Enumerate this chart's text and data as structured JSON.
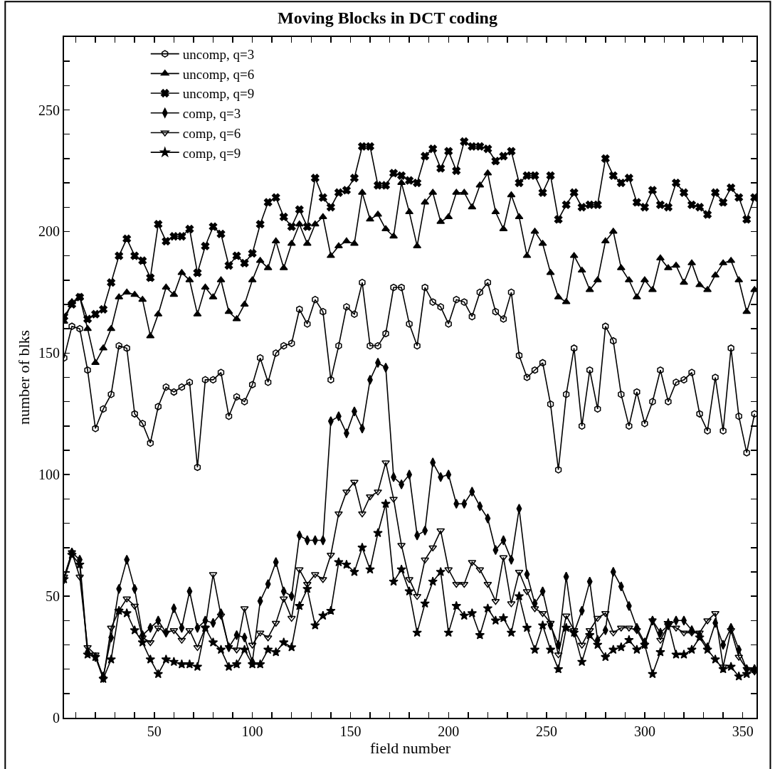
{
  "chart_data": {
    "type": "line",
    "title": "Moving Blocks in DCT coding",
    "xlabel": "field number",
    "ylabel": "number of blks",
    "x": [
      4,
      8,
      12,
      16,
      20,
      24,
      28,
      32,
      36,
      40,
      44,
      48,
      52,
      56,
      60,
      64,
      68,
      72,
      76,
      80,
      84,
      88,
      92,
      96,
      100,
      104,
      108,
      112,
      116,
      120,
      124,
      128,
      132,
      136,
      140,
      144,
      148,
      152,
      156,
      160,
      164,
      168,
      172,
      176,
      180,
      184,
      188,
      192,
      196,
      200,
      204,
      208,
      212,
      216,
      220,
      224,
      228,
      232,
      236,
      240,
      244,
      248,
      252,
      256,
      260,
      264,
      268,
      272,
      276,
      280,
      284,
      288,
      292,
      296,
      300,
      304,
      308,
      312,
      316,
      320,
      324,
      328,
      332,
      336,
      340,
      344,
      348,
      352,
      356
    ],
    "xlim": [
      4,
      357
    ],
    "ylim": [
      0,
      280
    ],
    "xticks": [
      {
        "value": 10,
        "label": null
      },
      {
        "value": 20,
        "label": null
      },
      {
        "value": 30,
        "label": null
      },
      {
        "value": 40,
        "label": null
      },
      50,
      {
        "value": 60,
        "label": null
      },
      {
        "value": 70,
        "label": null
      },
      {
        "value": 80,
        "label": null
      },
      {
        "value": 90,
        "label": null
      },
      100,
      {
        "value": 110,
        "label": null
      },
      {
        "value": 120,
        "label": null
      },
      {
        "value": 130,
        "label": null
      },
      {
        "value": 140,
        "label": null
      },
      150,
      {
        "value": 160,
        "label": null
      },
      {
        "value": 170,
        "label": null
      },
      {
        "value": 180,
        "label": null
      },
      {
        "value": 190,
        "label": null
      },
      200,
      {
        "value": 210,
        "label": null
      },
      {
        "value": 220,
        "label": null
      },
      {
        "value": 230,
        "label": null
      },
      {
        "value": 240,
        "label": null
      },
      250,
      {
        "value": 260,
        "label": null
      },
      {
        "value": 270,
        "label": null
      },
      {
        "value": 280,
        "label": null
      },
      {
        "value": 290,
        "label": null
      },
      300,
      {
        "value": 310,
        "label": null
      },
      {
        "value": 320,
        "label": null
      },
      {
        "value": 330,
        "label": null
      },
      {
        "value": 340,
        "label": null
      },
      350
    ],
    "yticks": [
      0,
      {
        "value": 10,
        "label": null
      },
      {
        "value": 20,
        "label": null
      },
      {
        "value": 30,
        "label": null
      },
      {
        "value": 40,
        "label": null
      },
      50,
      {
        "value": 60,
        "label": null
      },
      {
        "value": 70,
        "label": null
      },
      {
        "value": 80,
        "label": null
      },
      {
        "value": 90,
        "label": null
      },
      100,
      {
        "value": 110,
        "label": null
      },
      {
        "value": 120,
        "label": null
      },
      {
        "value": 130,
        "label": null
      },
      {
        "value": 140,
        "label": null
      },
      150,
      {
        "value": 160,
        "label": null
      },
      {
        "value": 170,
        "label": null
      },
      {
        "value": 180,
        "label": null
      },
      {
        "value": 190,
        "label": null
      },
      200,
      {
        "value": 210,
        "label": null
      },
      {
        "value": 220,
        "label": null
      },
      {
        "value": 230,
        "label": null
      },
      {
        "value": 240,
        "label": null
      },
      250,
      {
        "value": 260,
        "label": null
      },
      {
        "value": 270,
        "label": null
      },
      {
        "value": 280,
        "label": null
      }
    ],
    "grid": false,
    "legend": "top",
    "line_style": "solid",
    "series": [
      {
        "name": "uncomp, q=3",
        "color": "#000000",
        "marker": "circle",
        "values": [
          148,
          161,
          160,
          143,
          119,
          127,
          133,
          153,
          152,
          125,
          121,
          113,
          128,
          136,
          134,
          136,
          138,
          103,
          139,
          139,
          142,
          124,
          132,
          130,
          137,
          148,
          138,
          150,
          153,
          154,
          168,
          162,
          172,
          167,
          139,
          153,
          169,
          166,
          179,
          153,
          153,
          158,
          177,
          177,
          162,
          153,
          177,
          171,
          169,
          162,
          172,
          171,
          165,
          175,
          179,
          167,
          164,
          175,
          149,
          140,
          143,
          146,
          129,
          102,
          133,
          152,
          120,
          143,
          127,
          161,
          155,
          133,
          120,
          134,
          121,
          130,
          143,
          130,
          138,
          139,
          142,
          125,
          118,
          140,
          118,
          152,
          124,
          109,
          125
        ]
      },
      {
        "name": "uncomp, q=6",
        "color": "#000000",
        "marker": "triangle",
        "values": [
          163,
          171,
          173,
          160,
          146,
          152,
          160,
          173,
          175,
          174,
          172,
          157,
          166,
          177,
          174,
          183,
          180,
          166,
          177,
          173,
          180,
          167,
          164,
          170,
          180,
          188,
          185,
          196,
          185,
          195,
          203,
          195,
          203,
          206,
          190,
          194,
          196,
          195,
          216,
          205,
          207,
          201,
          198,
          220,
          208,
          194,
          212,
          216,
          204,
          206,
          216,
          216,
          210,
          219,
          224,
          208,
          201,
          215,
          206,
          190,
          200,
          195,
          183,
          173,
          171,
          190,
          184,
          176,
          180,
          196,
          200,
          185,
          180,
          173,
          180,
          176,
          189,
          185,
          186,
          179,
          187,
          178,
          176,
          182,
          187,
          188,
          180,
          167,
          176
        ]
      },
      {
        "name": "uncomp, q=9",
        "color": "#000000",
        "marker": "cross",
        "values": [
          165,
          170,
          173,
          164,
          166,
          168,
          179,
          190,
          197,
          190,
          188,
          181,
          203,
          196,
          198,
          198,
          201,
          183,
          194,
          202,
          199,
          186,
          190,
          187,
          191,
          203,
          212,
          214,
          206,
          202,
          209,
          202,
          222,
          214,
          210,
          216,
          217,
          222,
          235,
          235,
          219,
          219,
          224,
          223,
          221,
          220,
          231,
          234,
          226,
          233,
          225,
          237,
          235,
          235,
          234,
          229,
          231,
          233,
          220,
          223,
          223,
          216,
          223,
          205,
          211,
          216,
          210,
          211,
          211,
          230,
          223,
          220,
          222,
          212,
          210,
          217,
          211,
          210,
          220,
          216,
          211,
          210,
          207,
          216,
          212,
          218,
          214,
          205,
          214
        ]
      },
      {
        "name": "comp, q=3",
        "color": "#000000",
        "marker": "diamond",
        "values": [
          57,
          68,
          65,
          27,
          25,
          17,
          33,
          53,
          65,
          53,
          34,
          37,
          40,
          35,
          45,
          37,
          52,
          37,
          40,
          39,
          43,
          29,
          34,
          33,
          23,
          48,
          55,
          64,
          52,
          50,
          75,
          73,
          73,
          73,
          122,
          124,
          117,
          126,
          119,
          139,
          146,
          144,
          99,
          96,
          100,
          75,
          77,
          105,
          99,
          100,
          88,
          88,
          93,
          87,
          82,
          69,
          73,
          65,
          86,
          59,
          47,
          52,
          38,
          30,
          58,
          35,
          44,
          56,
          32,
          36,
          60,
          54,
          46,
          37,
          31,
          40,
          35,
          38,
          40,
          40,
          36,
          34,
          29,
          39,
          30,
          37,
          28,
          20,
          20
        ]
      },
      {
        "name": "comp, q=6",
        "color": "#000000",
        "marker": "triangle-down",
        "values": [
          58,
          68,
          58,
          29,
          26,
          16,
          37,
          44,
          49,
          46,
          33,
          31,
          37,
          35,
          36,
          32,
          36,
          29,
          37,
          59,
          42,
          29,
          28,
          45,
          30,
          35,
          33,
          39,
          49,
          41,
          61,
          55,
          59,
          57,
          67,
          84,
          93,
          97,
          84,
          91,
          93,
          105,
          90,
          71,
          57,
          50,
          65,
          70,
          77,
          61,
          55,
          55,
          64,
          61,
          55,
          48,
          66,
          47,
          60,
          52,
          45,
          43,
          39,
          26,
          42,
          36,
          30,
          36,
          41,
          43,
          35,
          37,
          37,
          36,
          30,
          40,
          32,
          38,
          37,
          35,
          35,
          35,
          40,
          43,
          21,
          36,
          25,
          20,
          19
        ]
      },
      {
        "name": "comp, q=9",
        "color": "#000000",
        "marker": "star",
        "values": [
          57,
          67,
          63,
          26,
          25,
          16,
          24,
          44,
          43,
          36,
          31,
          24,
          18,
          24,
          23,
          22,
          22,
          21,
          37,
          31,
          28,
          21,
          22,
          28,
          22,
          22,
          28,
          27,
          31,
          29,
          46,
          53,
          38,
          42,
          44,
          64,
          63,
          60,
          70,
          61,
          76,
          88,
          56,
          61,
          52,
          35,
          47,
          56,
          60,
          35,
          46,
          42,
          43,
          34,
          45,
          40,
          41,
          35,
          50,
          37,
          28,
          38,
          28,
          20,
          37,
          35,
          23,
          34,
          30,
          25,
          28,
          29,
          32,
          28,
          30,
          18,
          27,
          39,
          26,
          26,
          28,
          33,
          28,
          24,
          20,
          21,
          17,
          18,
          20
        ]
      }
    ]
  }
}
